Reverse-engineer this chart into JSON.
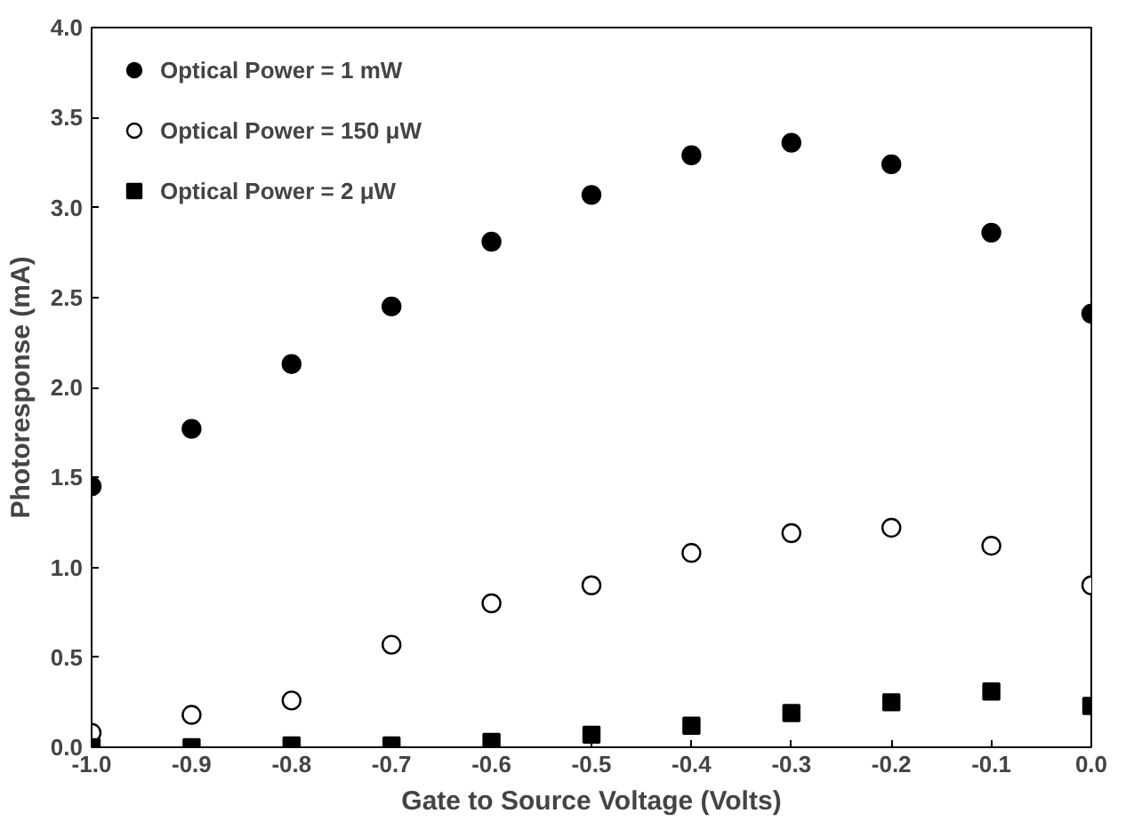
{
  "chart_data": {
    "type": "scatter",
    "xlabel": "Gate to Source Voltage (Volts)",
    "ylabel": "Photoresponse (mA)",
    "x": [
      -1.0,
      -0.9,
      -0.8,
      -0.7,
      -0.6,
      -0.5,
      -0.4,
      -0.3,
      -0.2,
      -0.1,
      0.0
    ],
    "series": [
      {
        "name": "Optical Power = 1 mW",
        "color": "#000000",
        "marker": "circle",
        "values": [
          1.45,
          1.77,
          2.13,
          2.45,
          2.81,
          3.07,
          3.29,
          3.36,
          3.24,
          2.86,
          2.41
        ]
      },
      {
        "name": "Optical Power = 150 μW",
        "color": "#000000",
        "marker": "circle_open",
        "values": [
          0.08,
          0.18,
          0.26,
          0.57,
          0.8,
          0.9,
          1.08,
          1.19,
          1.22,
          1.12,
          0.9
        ]
      },
      {
        "name": "Optical Power = 2 μW",
        "color": "#000000",
        "marker": "square",
        "values": [
          0.0,
          0.0,
          0.01,
          0.01,
          0.03,
          0.07,
          0.12,
          0.19,
          0.25,
          0.31,
          0.23
        ]
      }
    ],
    "xlim": [
      -1.0,
      0.0
    ],
    "ylim": [
      0.0,
      4.0
    ],
    "xticks": [
      {
        "value": -1,
        "label": "-1.0"
      },
      -0.9,
      -0.8,
      -0.7,
      -0.6,
      -0.5,
      -0.4,
      -0.3,
      -0.2,
      -0.1,
      {
        "value": 0,
        "label": "0.0"
      }
    ],
    "yticks": [
      {
        "value": 0,
        "label": "0.0"
      },
      0.5,
      {
        "value": 1,
        "label": "1.0"
      },
      1.5,
      {
        "value": 2,
        "label": "2.0"
      },
      2.5,
      {
        "value": 3,
        "label": "3.0"
      },
      3.5,
      {
        "value": 4,
        "label": "4.0"
      }
    ],
    "grid": false,
    "legend": "top left"
  }
}
